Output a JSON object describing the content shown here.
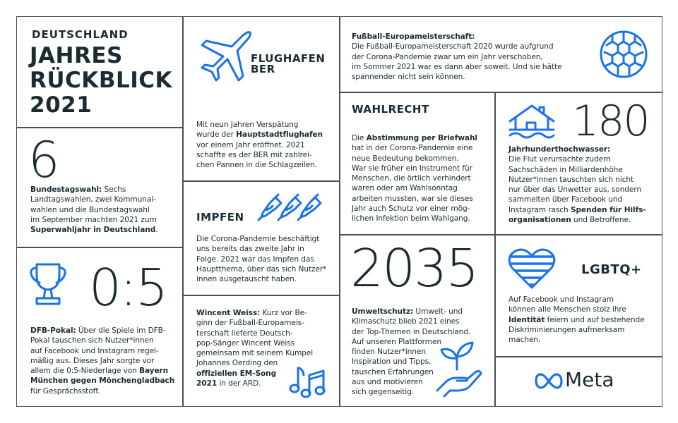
{
  "title": {
    "kicker": "DEUTSCHLAND",
    "line1": "JAHRES",
    "line2": "RÜCKBLICK",
    "line3": "2021"
  },
  "colors": {
    "text": "#1c2b33",
    "accent": "#1a73e8",
    "border": "#4a4f55"
  },
  "cells": {
    "bundestagswahl": {
      "number": "6",
      "paragraph": [
        {
          "t": "Bundestagswahl:",
          "b": true
        },
        {
          "t": " Sechs\nLandtagswahlen, zwei Kommunal-\nwahlen und die Bundestagswahl\nim September machten 2021 zum\n"
        },
        {
          "t": "Superwahljahr in Deutschland",
          "b": true
        },
        {
          "t": "."
        }
      ]
    },
    "dfb": {
      "icon": "trophy-icon",
      "number": "0:5",
      "paragraph": [
        {
          "t": "DFB-Pokal:",
          "b": true
        },
        {
          "t": " Über die Spiele im DFB-\nPokal tauschen sich Nutzer*innen\nauf Facebook und Instagram regel-\nmäßig aus. Dieses Jahr sorgte vor\nallem die 0:5-Niederlage von "
        },
        {
          "t": "Bayern\nMünchen gegen Mönchengladbach",
          "b": true
        },
        {
          "t": "\nfür Gesprächsstoff."
        }
      ]
    },
    "ber": {
      "icon": "airplane-icon",
      "heading": "FLUGHAFEN\nBER",
      "paragraph": [
        {
          "t": "Mit neun Jahren Verspätung\nwurde der "
        },
        {
          "t": "Hauptstadtflughafen",
          "b": true
        },
        {
          "t": "\nvor einem Jahr eröffnet. 2021\nschaffte es der BER mit zahlrei-\nchen Pannen in die Schlagzeilen."
        }
      ]
    },
    "impfen": {
      "icon": "syringes-icon",
      "heading": "IMPFEN",
      "paragraph": [
        {
          "t": "Die Corona-Pandemie beschäftigt\nuns bereits das zweite Jahr in\nFolge. 2021 war das Impfen das\nHauptthema, über das sich Nutzer*\ninnen ausgetauscht haben."
        }
      ]
    },
    "wincent": {
      "icon": "music-notes-icon",
      "paragraph": [
        {
          "t": "Wincent Weiss:",
          "b": true
        },
        {
          "t": " Kurz vor Be-\nginn der Fußball-Europameis-\nterschaft lieferte Deutsch-\npop-Sänger Wincent Weiss\ngemeinsam mit seinem Kumpel\nJohannes Oerding den\n"
        },
        {
          "t": "offiziellen EM-Song\n2021",
          "b": true
        },
        {
          "t": " in der ARD."
        }
      ]
    },
    "em": {
      "icon": "soccer-ball-icon",
      "paragraph": [
        {
          "t": "Fußball-Europameisterschaft:",
          "b": true
        },
        {
          "t": "\nDie Fußball-Europameisterschaft 2020 wurde aufgrund\nder Corona-Pandemie zwar um ein Jahr verschoben,\nim Sommer 2021 war es dann aber soweit. Und sie hätte\nspannender nicht sein können."
        }
      ]
    },
    "wahlrecht": {
      "heading": "WAHLRECHT",
      "paragraph": [
        {
          "t": "Die "
        },
        {
          "t": "Abstimmung per Briefwahl",
          "b": true
        },
        {
          "t": "\nhat in der Corona-Pandemie eine\nneue Bedeutung bekommen.\nWar sie früher ein Instrument für\nMenschen, die örtlich verhindert\nwaren oder am Wahlsonntag\narbeiten mussten, war sie dieses\nJahr auch Schutz vor einer mög-\nlichen Infektion beim Wahlgang."
        }
      ]
    },
    "hochwasser": {
      "icon": "flooded-house-icon",
      "number": "180",
      "paragraph": [
        {
          "t": "Jahrhunderthochwasser:",
          "b": true
        },
        {
          "t": "\nDie Flut verursachte zudem\nSachschäden in Milliardenhöhe\nNutzer*innen tauschten sich nicht\nnur über das Unwetter aus, sondern\nsammelten über Facebook und\nInstagram rasch "
        },
        {
          "t": "Spenden für Hilfs-\norganisationen",
          "b": true
        },
        {
          "t": " und Betroffene."
        }
      ]
    },
    "umwelt": {
      "icon": "plant-in-hand-icon",
      "number": "2035",
      "paragraph": [
        {
          "t": "Umweltschutz:",
          "b": true
        },
        {
          "t": " Umwelt- und\nKlimaschutz blieb 2021 eines\nder Top-Themen in Deutschland.\nAuf unseren Plattformen\nfinden Nutzer*innen\nInspiration und Tipps,\ntauschen Erfahrungen\naus und motivieren\nsich gegenseitig."
        }
      ]
    },
    "lgbtq": {
      "icon": "striped-heart-icon",
      "heading": "LGBTQ+",
      "paragraph": [
        {
          "t": "Auf Facebook und Instagram\nkönnen alle Menschen stolz ihre\n"
        },
        {
          "t": "Identität",
          "b": true
        },
        {
          "t": " feiern und auf bestehende\nDiskriminierungen aufmerksam\nmachen."
        }
      ]
    }
  },
  "logo": {
    "icon": "meta-infinity-icon",
    "text": "Meta"
  }
}
